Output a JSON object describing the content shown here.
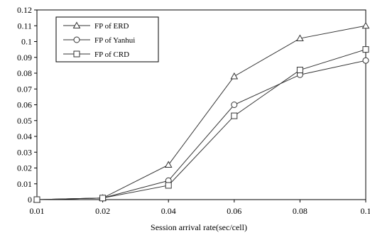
{
  "chart_data": {
    "type": "line",
    "title": "",
    "xlabel": "Session arrival rate(sec/cell)",
    "ylabel": "",
    "categories": [
      "0.01",
      "0.02",
      "0.04",
      "0.06",
      "0.08",
      "0.1"
    ],
    "x_tick_labels": [
      "0.01",
      "0.02",
      "0.04",
      "0.06",
      "0.08",
      "0.1"
    ],
    "y_tick_labels": [
      "0",
      "0.01",
      "0.02",
      "0.03",
      "0.04",
      "0.05",
      "0.06",
      "0.07",
      "0.08",
      "0.09",
      "0.1",
      "0.11",
      "0.12"
    ],
    "ylim": [
      0,
      0.12
    ],
    "grid": false,
    "legend_position": "top-left",
    "series": [
      {
        "name": "FP of ERD",
        "marker": "triangle",
        "values": [
          0.0,
          0.001,
          0.022,
          0.078,
          0.102,
          0.11
        ]
      },
      {
        "name": "FP of Yanhui",
        "marker": "circle",
        "values": [
          0.0,
          0.001,
          0.012,
          0.06,
          0.079,
          0.088
        ]
      },
      {
        "name": "FP of CRD",
        "marker": "square",
        "values": [
          0.0,
          0.001,
          0.009,
          0.053,
          0.082,
          0.095
        ]
      }
    ],
    "colors": {
      "line": "#333333",
      "axis": "#000000"
    }
  }
}
